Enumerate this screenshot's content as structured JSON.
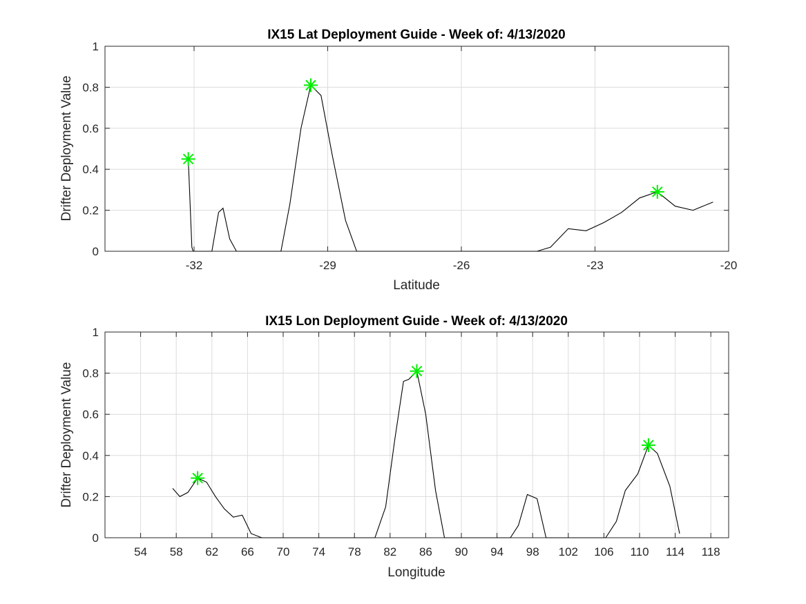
{
  "chart_data": [
    {
      "type": "line",
      "title": "IX15 Lat Deployment Guide - Week of: 4/13/2020",
      "xlabel": "Latitude",
      "ylabel": "Drifter Deployment Value",
      "xlim": [
        -34,
        -20
      ],
      "ylim": [
        0,
        1
      ],
      "xticks": [
        -32,
        -29,
        -26,
        -23,
        -20
      ],
      "xtick_labels": [
        "-32",
        "-29",
        "-26",
        "-23",
        "-20"
      ],
      "yticks": [
        0,
        0.2,
        0.4,
        0.6,
        0.8,
        1
      ],
      "ytick_labels": [
        "0",
        "0.2",
        "0.4",
        "0.6",
        "0.8",
        "1"
      ],
      "grid": true,
      "series": [
        {
          "x": [
            -32.13,
            -32.05,
            -32.02,
            -31.6,
            -31.45,
            -31.35,
            -31.2,
            -31.05,
            -30.5,
            -30.05,
            -29.85,
            -29.6,
            -29.38,
            -29.15,
            -28.9,
            -28.6,
            -28.35,
            -28.1,
            -27.5,
            -26.5,
            -25.5,
            -24.3,
            -24.0,
            -23.6,
            -23.2,
            -22.8,
            -22.4,
            -22.0,
            -21.6,
            -21.2,
            -20.8,
            -20.35
          ],
          "y": [
            0.45,
            0.02,
            0.0,
            0.0,
            0.19,
            0.21,
            0.06,
            0.0,
            0.0,
            0.0,
            0.23,
            0.6,
            0.81,
            0.76,
            0.47,
            0.15,
            0.0,
            0.0,
            0.0,
            0.0,
            0.0,
            0.0,
            0.02,
            0.11,
            0.1,
            0.14,
            0.19,
            0.26,
            0.29,
            0.22,
            0.2,
            0.24
          ]
        }
      ],
      "markers": {
        "color": "#00ee00",
        "symbol": "asterisk",
        "points": [
          [
            -32.13,
            0.45
          ],
          [
            -29.38,
            0.81
          ],
          [
            -21.6,
            0.29
          ]
        ]
      }
    },
    {
      "type": "line",
      "title": "IX15 Lon Deployment Guide - Week of: 4/13/2020",
      "xlabel": "Longitude",
      "ylabel": "Drifter Deployment Value",
      "xlim": [
        50,
        120
      ],
      "ylim": [
        0,
        1
      ],
      "xticks": [
        54,
        58,
        62,
        66,
        70,
        74,
        78,
        82,
        86,
        90,
        94,
        98,
        102,
        106,
        110,
        114,
        118
      ],
      "xtick_labels": [
        "54",
        "58",
        "62",
        "66",
        "70",
        "74",
        "78",
        "82",
        "86",
        "90",
        "94",
        "98",
        "102",
        "106",
        "110",
        "114",
        "118"
      ],
      "yticks": [
        0,
        0.2,
        0.4,
        0.6,
        0.8,
        1
      ],
      "ytick_labels": [
        "0",
        "0.2",
        "0.4",
        "0.6",
        "0.8",
        "1"
      ],
      "grid": true,
      "series": [
        {
          "x": [
            57.6,
            58.4,
            59.3,
            60.4,
            61.4,
            62.4,
            63.4,
            64.4,
            65.4,
            66.4,
            67.6,
            70,
            75,
            80.3,
            81.5,
            82.5,
            83.5,
            84.1,
            85.0,
            86.0,
            87.1,
            88.1,
            90,
            93,
            95.5,
            96.4,
            97.4,
            98.5,
            99.5,
            102,
            105,
            106.2,
            107.4,
            108.4,
            109.8,
            111.0,
            112.0,
            113.4,
            114.5
          ],
          "y": [
            0.24,
            0.2,
            0.22,
            0.29,
            0.27,
            0.2,
            0.14,
            0.1,
            0.11,
            0.02,
            0.0,
            0.0,
            0.0,
            0.0,
            0.15,
            0.47,
            0.76,
            0.77,
            0.81,
            0.6,
            0.23,
            0.0,
            0.0,
            0.0,
            0.0,
            0.06,
            0.21,
            0.19,
            0.0,
            0.0,
            0.0,
            0.0,
            0.08,
            0.23,
            0.31,
            0.45,
            0.41,
            0.25,
            0.02
          ]
        }
      ],
      "markers": {
        "color": "#00ee00",
        "symbol": "asterisk",
        "points": [
          [
            60.4,
            0.29
          ],
          [
            85.0,
            0.81
          ],
          [
            111.0,
            0.45
          ]
        ]
      }
    }
  ]
}
